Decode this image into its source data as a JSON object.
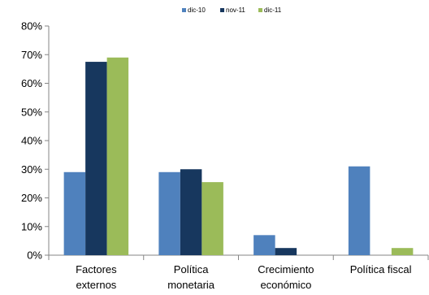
{
  "chart_data": {
    "type": "bar",
    "categories": [
      [
        "Factores",
        "externos"
      ],
      [
        "Política",
        "monetaria"
      ],
      [
        "Crecimiento",
        "económico"
      ],
      [
        "Política fiscal"
      ]
    ],
    "series": [
      {
        "name": "dic-10",
        "color": "#4F81BD",
        "values": [
          29,
          29,
          7,
          31
        ]
      },
      {
        "name": "nov-11",
        "color": "#17375E",
        "values": [
          67.5,
          30,
          2.5,
          0
        ]
      },
      {
        "name": "dic-11",
        "color": "#9BBB59",
        "values": [
          69,
          25.5,
          0,
          2.5
        ]
      }
    ],
    "ylim": [
      0,
      80
    ],
    "yticks": [
      "0%",
      "10%",
      "20%",
      "30%",
      "40%",
      "50%",
      "60%",
      "70%",
      "80%"
    ],
    "grid": false,
    "legend_position": "top"
  }
}
